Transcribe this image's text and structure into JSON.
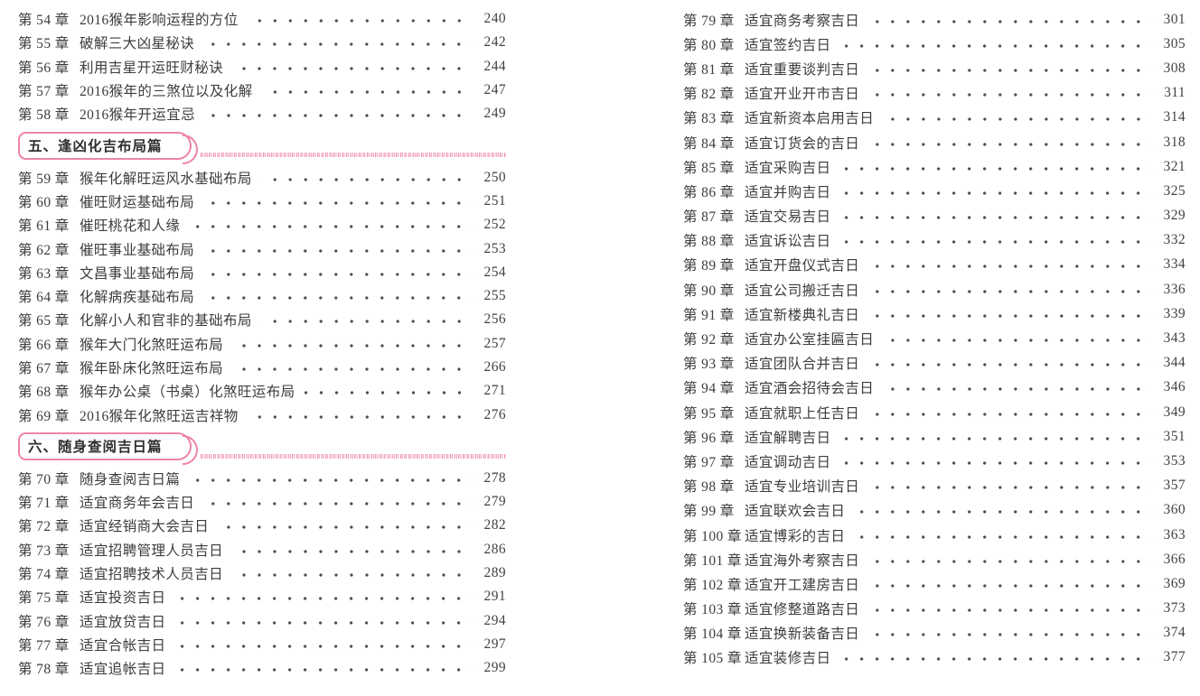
{
  "document": {
    "kind": "book-table-of-contents",
    "language": "zh-CN"
  },
  "colors": {
    "accent_pink": "#ee84ac",
    "hatch_pink": "#f3a9c6",
    "text": "#3c3c3c"
  },
  "toc": {
    "columns": [
      {
        "entries": [
          {
            "kind": "chapter",
            "label": "第 54 章",
            "title": "2016猴年影响运程的方位",
            "page": "240"
          },
          {
            "kind": "chapter",
            "label": "第 55 章",
            "title": "破解三大凶星秘诀",
            "page": "242"
          },
          {
            "kind": "chapter",
            "label": "第 56 章",
            "title": "利用吉星开运旺财秘诀",
            "page": "244"
          },
          {
            "kind": "chapter",
            "label": "第 57 章",
            "title": "2016猴年的三煞位以及化解",
            "page": "247"
          },
          {
            "kind": "chapter",
            "label": "第 58 章",
            "title": "2016猴年开运宜忌",
            "page": "249"
          },
          {
            "kind": "section",
            "title": "五、逢凶化吉布局篇"
          },
          {
            "kind": "chapter",
            "label": "第 59 章",
            "title": "猴年化解旺运风水基础布局",
            "page": "250"
          },
          {
            "kind": "chapter",
            "label": "第 60 章",
            "title": "催旺财运基础布局",
            "page": "251"
          },
          {
            "kind": "chapter",
            "label": "第 61 章",
            "title": "催旺桃花和人缘",
            "page": "252"
          },
          {
            "kind": "chapter",
            "label": "第 62 章",
            "title": "催旺事业基础布局",
            "page": "253"
          },
          {
            "kind": "chapter",
            "label": "第 63 章",
            "title": "文昌事业基础布局",
            "page": "254"
          },
          {
            "kind": "chapter",
            "label": "第 64 章",
            "title": "化解病疾基础布局",
            "page": "255"
          },
          {
            "kind": "chapter",
            "label": "第 65 章",
            "title": "化解小人和官非的基础布局",
            "page": "256"
          },
          {
            "kind": "chapter",
            "label": "第 66 章",
            "title": "猴年大门化煞旺运布局",
            "page": "257"
          },
          {
            "kind": "chapter",
            "label": "第 67 章",
            "title": "猴年卧床化煞旺运布局",
            "page": "266"
          },
          {
            "kind": "chapter",
            "label": "第 68 章",
            "title": "猴年办公桌（书桌）化煞旺运布局",
            "page": "271"
          },
          {
            "kind": "chapter",
            "label": "第 69 章",
            "title": "2016猴年化煞旺运吉祥物",
            "page": "276"
          },
          {
            "kind": "section",
            "title": "六、随身查阅吉日篇"
          },
          {
            "kind": "chapter",
            "label": "第 70 章",
            "title": "随身查阅吉日篇",
            "page": "278"
          },
          {
            "kind": "chapter",
            "label": "第 71 章",
            "title": "适宜商务年会吉日",
            "page": "279"
          },
          {
            "kind": "chapter",
            "label": "第 72 章",
            "title": "适宜经销商大会吉日",
            "page": "282"
          },
          {
            "kind": "chapter",
            "label": "第 73 章",
            "title": "适宜招聘管理人员吉日",
            "page": "286"
          },
          {
            "kind": "chapter",
            "label": "第 74 章",
            "title": "适宜招聘技术人员吉日",
            "page": "289"
          },
          {
            "kind": "chapter",
            "label": "第 75 章",
            "title": "适宜投资吉日",
            "page": "291"
          },
          {
            "kind": "chapter",
            "label": "第 76 章",
            "title": "适宜放贷吉日",
            "page": "294"
          },
          {
            "kind": "chapter",
            "label": "第 77 章",
            "title": "适宜合帐吉日",
            "page": "297"
          },
          {
            "kind": "chapter",
            "label": "第 78 章",
            "title": "适宜追帐吉日",
            "page": "299"
          }
        ]
      },
      {
        "entries": [
          {
            "kind": "chapter",
            "label": "第 79 章",
            "title": "适宜商务考察吉日",
            "page": "301"
          },
          {
            "kind": "chapter",
            "label": "第 80 章",
            "title": "适宜签约吉日",
            "page": "305"
          },
          {
            "kind": "chapter",
            "label": "第 81 章",
            "title": "适宜重要谈判吉日",
            "page": "308"
          },
          {
            "kind": "chapter",
            "label": "第 82 章",
            "title": "适宜开业开市吉日",
            "page": "311"
          },
          {
            "kind": "chapter",
            "label": "第 83 章",
            "title": "适宜新资本启用吉日",
            "page": "314"
          },
          {
            "kind": "chapter",
            "label": "第 84 章",
            "title": "适宜订货会的吉日",
            "page": "318"
          },
          {
            "kind": "chapter",
            "label": "第 85 章",
            "title": "适宜采购吉日",
            "page": "321"
          },
          {
            "kind": "chapter",
            "label": "第 86 章",
            "title": "适宜并购吉日",
            "page": "325"
          },
          {
            "kind": "chapter",
            "label": "第 87 章",
            "title": "适宜交易吉日",
            "page": "329"
          },
          {
            "kind": "chapter",
            "label": "第 88 章",
            "title": "适宜诉讼吉日",
            "page": "332"
          },
          {
            "kind": "chapter",
            "label": "第 89 章",
            "title": "适宜开盘仪式吉日",
            "page": "334"
          },
          {
            "kind": "chapter",
            "label": "第 90 章",
            "title": "适宜公司搬迁吉日",
            "page": "336"
          },
          {
            "kind": "chapter",
            "label": "第 91 章",
            "title": "适宜新楼典礼吉日",
            "page": "339"
          },
          {
            "kind": "chapter",
            "label": "第 92 章",
            "title": "适宜办公室挂匾吉日",
            "page": "343"
          },
          {
            "kind": "chapter",
            "label": "第 93 章",
            "title": "适宜团队合并吉日",
            "page": "344"
          },
          {
            "kind": "chapter",
            "label": "第 94 章",
            "title": "适宜酒会招待会吉日",
            "page": "346"
          },
          {
            "kind": "chapter",
            "label": "第 95 章",
            "title": "适宜就职上任吉日",
            "page": "349"
          },
          {
            "kind": "chapter",
            "label": "第 96 章",
            "title": "适宜解聘吉日",
            "page": "351"
          },
          {
            "kind": "chapter",
            "label": "第 97 章",
            "title": "适宜调动吉日",
            "page": "353"
          },
          {
            "kind": "chapter",
            "label": "第 98 章",
            "title": "适宜专业培训吉日",
            "page": "357"
          },
          {
            "kind": "chapter",
            "label": "第 99 章",
            "title": "适宜联欢会吉日",
            "page": "360"
          },
          {
            "kind": "chapter",
            "label": "第 100 章",
            "title": "适宜博彩的吉日",
            "page": "363"
          },
          {
            "kind": "chapter",
            "label": "第 101 章",
            "title": "适宜海外考察吉日",
            "page": "366"
          },
          {
            "kind": "chapter",
            "label": "第 102 章",
            "title": "适宜开工建房吉日",
            "page": "369"
          },
          {
            "kind": "chapter",
            "label": "第 103 章",
            "title": "适宜修整道路吉日",
            "page": "373"
          },
          {
            "kind": "chapter",
            "label": "第 104 章",
            "title": "适宜换新装备吉日",
            "page": "374"
          },
          {
            "kind": "chapter",
            "label": "第 105 章",
            "title": "适宜装修吉日",
            "page": "377"
          }
        ]
      }
    ]
  }
}
